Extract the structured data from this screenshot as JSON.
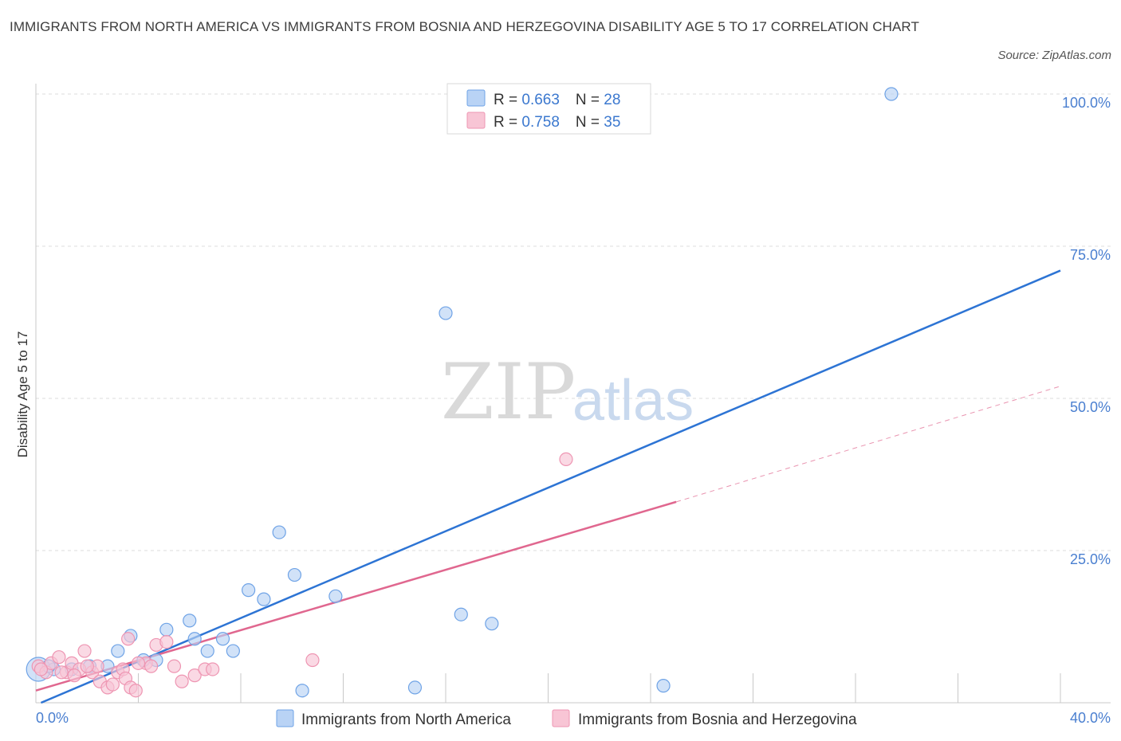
{
  "title": "IMMIGRANTS FROM NORTH AMERICA VS IMMIGRANTS FROM BOSNIA AND HERZEGOVINA DISABILITY AGE 5 TO 17 CORRELATION CHART",
  "source": "Source: ZipAtlas.com",
  "watermark": {
    "zip": "ZIP",
    "atlas": "atlas"
  },
  "chart_data": {
    "type": "scatter",
    "title": "IMMIGRANTS FROM NORTH AMERICA VS IMMIGRANTS FROM BOSNIA AND HERZEGOVINA DISABILITY AGE 5 TO 17 CORRELATION CHART",
    "xlabel": "",
    "ylabel": "Disability Age 5 to 17",
    "xlim": [
      0,
      40
    ],
    "ylim": [
      0,
      100
    ],
    "x_tick_labels": {
      "min": "0.0%",
      "max": "40.0%"
    },
    "y_ticks": [
      25,
      50,
      75,
      100
    ],
    "y_tick_labels": [
      "25.0%",
      "50.0%",
      "75.0%",
      "100.0%"
    ],
    "grid": true,
    "legend": {
      "placement": "top-center",
      "entries": [
        {
          "r_label": "R = ",
          "r_value": "0.663",
          "n_label": "N = ",
          "n_value": "28"
        },
        {
          "r_label": "R = ",
          "r_value": "0.758",
          "n_label": "N = ",
          "n_value": "35"
        }
      ]
    },
    "series": [
      {
        "name": "Immigrants from North America",
        "color": "#6fa3e6",
        "fill": "#b9d3f5",
        "line_color": "#2d74d4",
        "trend": {
          "x": [
            0.2,
            40.0
          ],
          "y": [
            0.0,
            71.0
          ],
          "dashed": false
        },
        "points": [
          {
            "x": 0.1,
            "y": 5.5,
            "big": true
          },
          {
            "x": 0.7,
            "y": 5.5
          },
          {
            "x": 1.4,
            "y": 5.5
          },
          {
            "x": 2.1,
            "y": 6.0
          },
          {
            "x": 2.8,
            "y": 6.0
          },
          {
            "x": 3.2,
            "y": 8.5
          },
          {
            "x": 3.7,
            "y": 11.0
          },
          {
            "x": 4.2,
            "y": 7.0
          },
          {
            "x": 4.7,
            "y": 7.0
          },
          {
            "x": 5.1,
            "y": 12.0
          },
          {
            "x": 6.0,
            "y": 13.5
          },
          {
            "x": 6.2,
            "y": 10.5
          },
          {
            "x": 6.7,
            "y": 8.5
          },
          {
            "x": 7.3,
            "y": 10.5
          },
          {
            "x": 7.7,
            "y": 8.5
          },
          {
            "x": 8.3,
            "y": 18.5
          },
          {
            "x": 8.9,
            "y": 17.0
          },
          {
            "x": 9.5,
            "y": 28.0
          },
          {
            "x": 10.1,
            "y": 21.0
          },
          {
            "x": 10.4,
            "y": 2.0
          },
          {
            "x": 11.7,
            "y": 17.5
          },
          {
            "x": 14.8,
            "y": 2.5
          },
          {
            "x": 16.0,
            "y": 64.0
          },
          {
            "x": 16.6,
            "y": 14.5
          },
          {
            "x": 17.8,
            "y": 13.0
          },
          {
            "x": 24.5,
            "y": 2.8
          },
          {
            "x": 33.4,
            "y": 100.0
          },
          {
            "x": 0.5,
            "y": 6.0
          }
        ]
      },
      {
        "name": "Immigrants from Bosnia and Herzegovina",
        "color": "#ee95b2",
        "fill": "#f8c5d5",
        "line_color": "#e0678f",
        "trend": {
          "x": [
            0.0,
            25.0
          ],
          "y": [
            2.0,
            33.0
          ],
          "dashed": false
        },
        "trend_extension": {
          "x": [
            25.0,
            40.0
          ],
          "y": [
            33.0,
            52.0
          ],
          "dashed": true
        },
        "points": [
          {
            "x": 0.1,
            "y": 6.0
          },
          {
            "x": 0.4,
            "y": 5.0
          },
          {
            "x": 0.6,
            "y": 6.5
          },
          {
            "x": 0.9,
            "y": 7.5
          },
          {
            "x": 1.2,
            "y": 5.0
          },
          {
            "x": 1.4,
            "y": 6.5
          },
          {
            "x": 1.7,
            "y": 5.5
          },
          {
            "x": 1.9,
            "y": 8.5
          },
          {
            "x": 2.2,
            "y": 5.0
          },
          {
            "x": 2.4,
            "y": 6.0
          },
          {
            "x": 2.5,
            "y": 3.5
          },
          {
            "x": 2.8,
            "y": 2.5
          },
          {
            "x": 3.0,
            "y": 3.0
          },
          {
            "x": 3.2,
            "y": 5.0
          },
          {
            "x": 3.4,
            "y": 5.5
          },
          {
            "x": 3.5,
            "y": 4.0
          },
          {
            "x": 3.6,
            "y": 10.5
          },
          {
            "x": 3.7,
            "y": 2.5
          },
          {
            "x": 3.9,
            "y": 2.0
          },
          {
            "x": 4.3,
            "y": 6.5
          },
          {
            "x": 4.5,
            "y": 6.0
          },
          {
            "x": 4.7,
            "y": 9.5
          },
          {
            "x": 5.1,
            "y": 10.0
          },
          {
            "x": 5.7,
            "y": 3.5
          },
          {
            "x": 6.2,
            "y": 4.5
          },
          {
            "x": 6.6,
            "y": 5.5
          },
          {
            "x": 6.9,
            "y": 5.5
          },
          {
            "x": 10.8,
            "y": 7.0
          },
          {
            "x": 20.7,
            "y": 40.0
          },
          {
            "x": 1.0,
            "y": 5.0
          },
          {
            "x": 2.0,
            "y": 6.0
          },
          {
            "x": 0.2,
            "y": 5.5
          },
          {
            "x": 1.5,
            "y": 4.5
          },
          {
            "x": 4.0,
            "y": 6.5
          },
          {
            "x": 5.4,
            "y": 6.0
          }
        ]
      }
    ]
  }
}
